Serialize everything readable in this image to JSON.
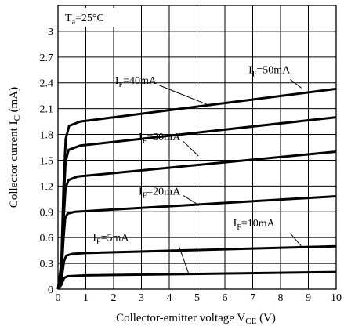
{
  "chart_data": {
    "type": "line",
    "condition": {
      "main": "T",
      "sub": "a",
      "rest": "=25°C"
    },
    "xlabel": {
      "main": "Collector-emitter voltage V",
      "sub": "CE",
      "rest": " (V)"
    },
    "ylabel": {
      "main": "Collector current I",
      "sub": "C",
      "rest": " (mA)"
    },
    "xlim": [
      0,
      10
    ],
    "ylim": [
      0,
      3.3
    ],
    "xticks": [
      "0",
      "1",
      "2",
      "3",
      "4",
      "5",
      "6",
      "7",
      "8",
      "9",
      "10"
    ],
    "yticks": [
      "0",
      "0.3",
      "0.6",
      "0.9",
      "1.2",
      "1.5",
      "1.8",
      "2.1",
      "2.4",
      "2.7",
      "3"
    ],
    "grid": true,
    "series": [
      {
        "name": "I_F=5mA",
        "label_main": "I",
        "label_sub": "F",
        "label_rest": "=5mA",
        "points": [
          [
            0,
            0
          ],
          [
            0.12,
            0.05
          ],
          [
            0.22,
            0.13
          ],
          [
            0.35,
            0.15
          ],
          [
            1,
            0.16
          ],
          [
            10,
            0.2
          ]
        ]
      },
      {
        "name": "I_F=10mA",
        "label_main": "I",
        "label_sub": "F",
        "label_rest": "=10mA",
        "points": [
          [
            0,
            0
          ],
          [
            0.12,
            0.1
          ],
          [
            0.22,
            0.33
          ],
          [
            0.3,
            0.39
          ],
          [
            0.5,
            0.41
          ],
          [
            1,
            0.42
          ],
          [
            10,
            0.5
          ]
        ]
      },
      {
        "name": "I_F=20mA",
        "label_main": "I",
        "label_sub": "F",
        "label_rest": "=20mA",
        "points": [
          [
            0,
            0
          ],
          [
            0.12,
            0.15
          ],
          [
            0.2,
            0.6
          ],
          [
            0.26,
            0.83
          ],
          [
            0.35,
            0.88
          ],
          [
            0.6,
            0.9
          ],
          [
            10,
            1.08
          ]
        ]
      },
      {
        "name": "I_F=30mA",
        "label_main": "I",
        "label_sub": "F",
        "label_rest": "=30mA",
        "points": [
          [
            0,
            0
          ],
          [
            0.12,
            0.2
          ],
          [
            0.2,
            0.8
          ],
          [
            0.27,
            1.18
          ],
          [
            0.38,
            1.27
          ],
          [
            0.7,
            1.31
          ],
          [
            10,
            1.6
          ]
        ]
      },
      {
        "name": "I_F=40mA",
        "label_main": "I",
        "label_sub": "F",
        "label_rest": "=40mA",
        "points": [
          [
            0,
            0
          ],
          [
            0.12,
            0.25
          ],
          [
            0.2,
            1.0
          ],
          [
            0.27,
            1.48
          ],
          [
            0.38,
            1.62
          ],
          [
            0.8,
            1.67
          ],
          [
            10,
            2.0
          ]
        ]
      },
      {
        "name": "I_F=50mA",
        "label_main": "I",
        "label_sub": "F",
        "label_rest": "=50mA",
        "points": [
          [
            0,
            0
          ],
          [
            0.12,
            0.3
          ],
          [
            0.2,
            1.2
          ],
          [
            0.28,
            1.75
          ],
          [
            0.4,
            1.9
          ],
          [
            0.8,
            1.95
          ],
          [
            10,
            2.33
          ]
        ]
      }
    ],
    "annotations": [
      {
        "series": 5,
        "label": [
          6.85,
          2.51
        ],
        "anchor": "start",
        "leader_from": [
          8.35,
          2.44
        ],
        "leader_to": [
          8.75,
          2.34
        ]
      },
      {
        "series": 4,
        "label": [
          3.55,
          2.39
        ],
        "anchor": "end",
        "leader_from": [
          3.65,
          2.37
        ],
        "leader_to": [
          5.5,
          2.13
        ]
      },
      {
        "series": 3,
        "label": [
          4.4,
          1.73
        ],
        "anchor": "end",
        "leader_from": [
          4.5,
          1.72
        ],
        "leader_to": [
          5.05,
          1.55
        ]
      },
      {
        "series": 2,
        "label": [
          4.4,
          1.1
        ],
        "anchor": "end",
        "leader_from": [
          4.5,
          1.09
        ],
        "leader_to": [
          5.05,
          0.98
        ]
      },
      {
        "series": 1,
        "label": [
          6.3,
          0.73
        ],
        "anchor": "start",
        "leader_from": [
          8.35,
          0.65
        ],
        "leader_to": [
          8.8,
          0.48
        ]
      },
      {
        "series": 0,
        "label": [
          2.55,
          0.56
        ],
        "anchor": "end",
        "leader_from": [
          4.35,
          0.5
        ],
        "leader_to": [
          4.7,
          0.18
        ]
      }
    ]
  }
}
